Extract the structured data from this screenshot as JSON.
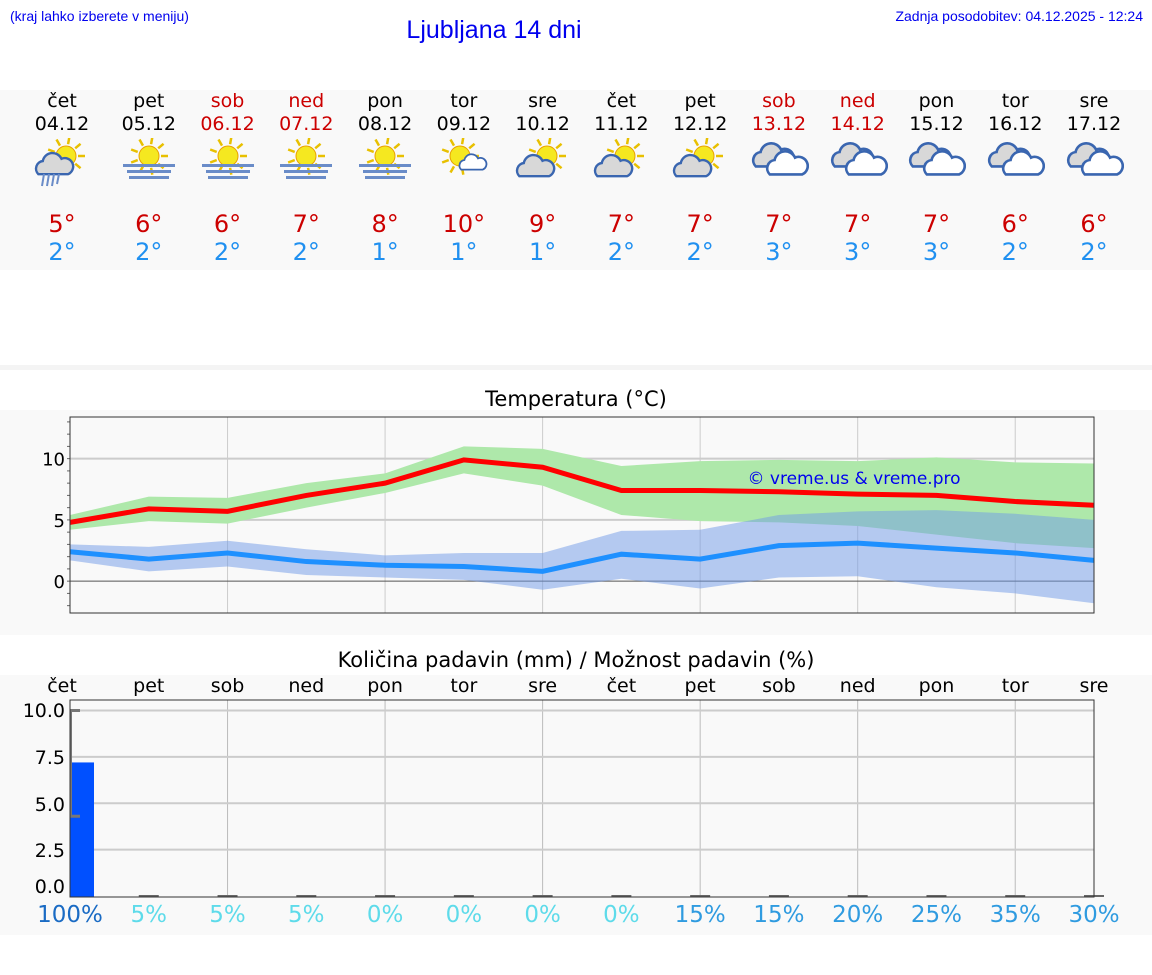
{
  "header": {
    "hint": "(kraj lahko izberete v meniju)",
    "title": "Ljubljana 14 dni",
    "updated": "Zadnja posodobitev: 04.12.2025 - 12:24"
  },
  "colors": {
    "max_line": "#ff0000",
    "max_band": "#aee8aa",
    "min_line": "#1e90ff",
    "min_band": "#b0c8f2",
    "overlap": "#7ec8a8",
    "bar": "#0050ff",
    "pct_high": "#1a6bc4",
    "pct_low": "#5edbea",
    "pct_mid": "#2f9be0",
    "weekend": "#cc0000"
  },
  "days": [
    {
      "name": "čet",
      "date": "04.12",
      "icon": "sun-cloud-rain-icon",
      "max": "5°",
      "min": "2°",
      "weekend": false
    },
    {
      "name": "pet",
      "date": "05.12",
      "icon": "sun-fog-icon",
      "max": "6°",
      "min": "2°",
      "weekend": false
    },
    {
      "name": "sob",
      "date": "06.12",
      "icon": "sun-fog-icon",
      "max": "6°",
      "min": "2°",
      "weekend": true
    },
    {
      "name": "ned",
      "date": "07.12",
      "icon": "sun-fog-icon",
      "max": "7°",
      "min": "2°",
      "weekend": true
    },
    {
      "name": "pon",
      "date": "08.12",
      "icon": "sun-fog-icon",
      "max": "8°",
      "min": "1°",
      "weekend": false
    },
    {
      "name": "tor",
      "date": "09.12",
      "icon": "sun-small-cloud-icon",
      "max": "10°",
      "min": "1°",
      "weekend": false
    },
    {
      "name": "sre",
      "date": "10.12",
      "icon": "sun-cloud-icon",
      "max": "9°",
      "min": "1°",
      "weekend": false
    },
    {
      "name": "čet",
      "date": "11.12",
      "icon": "sun-cloud-icon",
      "max": "7°",
      "min": "2°",
      "weekend": false
    },
    {
      "name": "pet",
      "date": "12.12",
      "icon": "sun-cloud-icon",
      "max": "7°",
      "min": "2°",
      "weekend": false
    },
    {
      "name": "sob",
      "date": "13.12",
      "icon": "cloudy-icon",
      "max": "7°",
      "min": "3°",
      "weekend": true
    },
    {
      "name": "ned",
      "date": "14.12",
      "icon": "cloudy-icon",
      "max": "7°",
      "min": "3°",
      "weekend": true
    },
    {
      "name": "pon",
      "date": "15.12",
      "icon": "cloudy-icon",
      "max": "7°",
      "min": "3°",
      "weekend": false
    },
    {
      "name": "tor",
      "date": "16.12",
      "icon": "cloudy-icon",
      "max": "6°",
      "min": "2°",
      "weekend": false
    },
    {
      "name": "sre",
      "date": "17.12",
      "icon": "cloudy-icon",
      "max": "6°",
      "min": "2°",
      "weekend": false
    }
  ],
  "chart_data": [
    {
      "type": "line",
      "title": "Temperatura (°C)",
      "watermark": "© vreme.us & vreme.pro",
      "ylim": [
        -2.6,
        13.4
      ],
      "yticks": [
        0,
        5,
        10
      ],
      "grid": true,
      "x": [
        "04.12",
        "05.12",
        "06.12",
        "07.12",
        "08.12",
        "09.12",
        "10.12",
        "11.12",
        "12.12",
        "13.12",
        "14.12",
        "15.12",
        "16.12",
        "17.12"
      ],
      "series": [
        {
          "role": "max",
          "values": [
            4.8,
            5.9,
            5.7,
            7.0,
            8.0,
            9.9,
            9.3,
            7.4,
            7.4,
            7.3,
            7.1,
            7.0,
            6.5,
            6.2
          ],
          "band_high": [
            5.4,
            6.9,
            6.8,
            8.0,
            8.8,
            11.0,
            10.8,
            9.4,
            9.8,
            9.9,
            9.8,
            10.1,
            9.7,
            9.6
          ],
          "band_low": [
            4.2,
            4.9,
            4.7,
            6.0,
            7.2,
            8.8,
            7.8,
            5.4,
            4.9,
            4.8,
            4.5,
            3.8,
            3.1,
            2.7
          ]
        },
        {
          "role": "min",
          "values": [
            2.4,
            1.8,
            2.3,
            1.6,
            1.3,
            1.2,
            0.8,
            2.2,
            1.8,
            2.9,
            3.1,
            2.7,
            2.3,
            1.7
          ],
          "band_high": [
            3.0,
            2.8,
            3.3,
            2.6,
            2.1,
            2.3,
            2.3,
            4.1,
            4.2,
            5.4,
            5.7,
            5.8,
            5.5,
            5.0
          ],
          "band_low": [
            1.7,
            0.8,
            1.2,
            0.5,
            0.3,
            0.1,
            -0.7,
            0.2,
            -0.6,
            0.3,
            0.4,
            -0.5,
            -1.0,
            -1.8
          ]
        }
      ]
    },
    {
      "type": "bar",
      "title": "Količina padavin (mm) / Možnost padavin (%)",
      "categories": [
        "čet",
        "pet",
        "sob",
        "ned",
        "pon",
        "tor",
        "sre",
        "čet",
        "pet",
        "sob",
        "ned",
        "pon",
        "tor",
        "sre"
      ],
      "values": [
        7.2,
        0,
        0,
        0,
        0,
        0,
        0,
        0,
        0,
        0,
        0,
        0,
        0,
        0
      ],
      "error_range": [
        [
          4.3,
          10.0
        ],
        null,
        null,
        null,
        null,
        null,
        null,
        null,
        null,
        null,
        null,
        null,
        null,
        null
      ],
      "ylim": [
        0,
        10
      ],
      "ytick_labels": [
        "0.0",
        "2.5",
        "5.0",
        "7.5",
        "10.0"
      ],
      "probability": [
        "100%",
        "5%",
        "5%",
        "5%",
        "0%",
        "0%",
        "0%",
        "0%",
        "15%",
        "15%",
        "20%",
        "25%",
        "35%",
        "30%"
      ],
      "grid": true
    }
  ]
}
